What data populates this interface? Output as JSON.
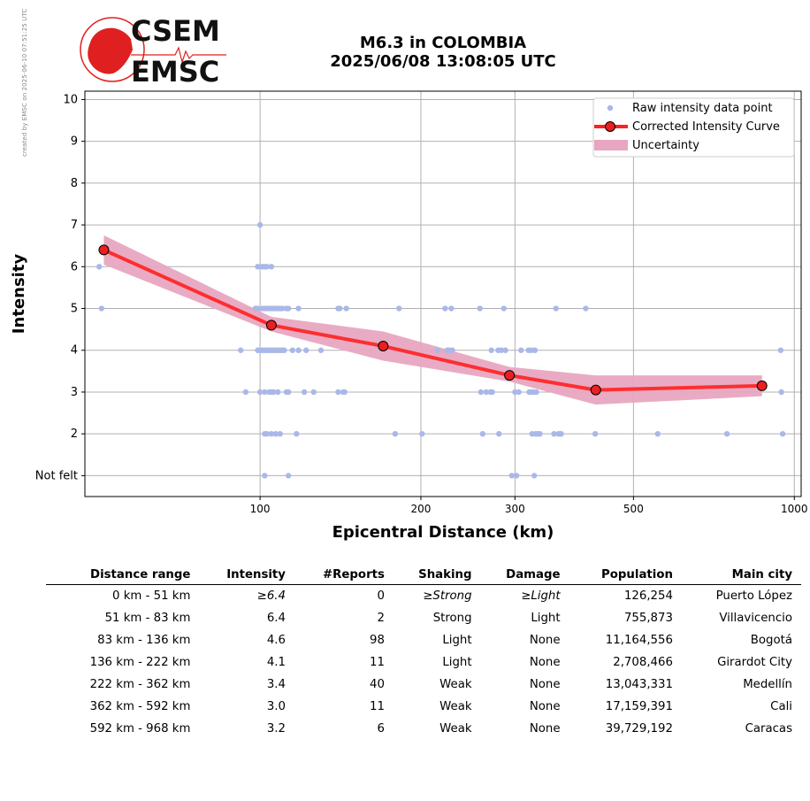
{
  "side_note": "created by EMSC on 2025-06-10 07:51:25 UTC",
  "logo": {
    "line1": "CSEM",
    "line2": "EMSC"
  },
  "header": {
    "title_line1": "M6.3 in COLOMBIA",
    "title_line2": "2025/06/08 13:08:05 UTC"
  },
  "chart_data": {
    "type": "scatter",
    "xlabel": "Epicentral Distance (km)",
    "ylabel": "Intensity",
    "x_scale": "log",
    "xlim": [
      47,
      1030
    ],
    "ylim": [
      0.5,
      10.2
    ],
    "x_ticks": [
      {
        "value": 100,
        "label": "100"
      },
      {
        "value": 200,
        "label": "200"
      },
      {
        "value": 300,
        "label": "300"
      },
      {
        "value": 500,
        "label": "500"
      },
      {
        "value": 1000,
        "label": "1000"
      }
    ],
    "y_ticks": [
      {
        "value": 1,
        "label": "Not felt"
      },
      {
        "value": 2,
        "label": "2"
      },
      {
        "value": 3,
        "label": "3"
      },
      {
        "value": 4,
        "label": "4"
      },
      {
        "value": 5,
        "label": "5"
      },
      {
        "value": 6,
        "label": "6"
      },
      {
        "value": 7,
        "label": "7"
      },
      {
        "value": 8,
        "label": "8"
      },
      {
        "value": 9,
        "label": "9"
      },
      {
        "value": 10,
        "label": "10"
      }
    ],
    "grid": true,
    "legend_position": "top-right",
    "legend": [
      {
        "key": "raw",
        "label": "Raw intensity data point"
      },
      {
        "key": "curve",
        "label": "Corrected Intensity Curve"
      },
      {
        "key": "band",
        "label": "Uncertainty"
      }
    ],
    "colors": {
      "raw": "#aab8e8",
      "curve": "#ff2020",
      "marker": "#e82020",
      "band": "#e8a6c0"
    },
    "raw_points": [
      [
        50,
        6
      ],
      [
        50.5,
        5
      ],
      [
        92,
        4
      ],
      [
        94,
        3
      ],
      [
        98,
        5
      ],
      [
        99,
        5
      ],
      [
        99,
        6
      ],
      [
        99,
        4
      ],
      [
        100,
        7
      ],
      [
        100,
        4
      ],
      [
        100,
        3
      ],
      [
        101,
        5
      ],
      [
        101,
        6
      ],
      [
        101,
        4
      ],
      [
        102,
        6
      ],
      [
        102,
        5
      ],
      [
        102,
        4
      ],
      [
        102,
        3
      ],
      [
        102,
        2
      ],
      [
        102,
        1
      ],
      [
        103,
        6
      ],
      [
        103,
        5
      ],
      [
        103,
        4
      ],
      [
        103,
        2
      ],
      [
        104,
        5
      ],
      [
        104,
        4
      ],
      [
        104,
        3
      ],
      [
        105,
        6
      ],
      [
        105,
        5
      ],
      [
        105,
        4
      ],
      [
        105,
        3
      ],
      [
        105,
        2
      ],
      [
        106,
        5
      ],
      [
        106,
        4
      ],
      [
        106,
        3
      ],
      [
        107,
        5
      ],
      [
        107,
        4
      ],
      [
        107,
        2
      ],
      [
        108,
        5
      ],
      [
        108,
        4
      ],
      [
        108,
        3
      ],
      [
        109,
        5
      ],
      [
        109,
        4
      ],
      [
        109,
        2
      ],
      [
        110,
        5
      ],
      [
        110,
        4
      ],
      [
        111,
        4
      ],
      [
        112,
        5
      ],
      [
        112,
        3
      ],
      [
        113,
        5
      ],
      [
        113,
        3
      ],
      [
        113,
        1
      ],
      [
        115,
        4
      ],
      [
        117,
        2
      ],
      [
        118,
        4
      ],
      [
        118,
        5
      ],
      [
        121,
        3
      ],
      [
        122,
        4
      ],
      [
        126,
        3
      ],
      [
        130,
        4
      ],
      [
        140,
        5
      ],
      [
        140,
        3
      ],
      [
        141,
        5
      ],
      [
        143,
        3
      ],
      [
        144,
        3
      ],
      [
        145,
        5
      ],
      [
        179,
        2
      ],
      [
        182,
        5
      ],
      [
        201,
        2
      ],
      [
        215,
        4
      ],
      [
        222,
        5
      ],
      [
        224,
        4
      ],
      [
        226,
        4
      ],
      [
        228,
        5
      ],
      [
        229,
        4
      ],
      [
        258,
        5
      ],
      [
        259,
        3
      ],
      [
        261,
        2
      ],
      [
        265,
        3
      ],
      [
        270,
        3
      ],
      [
        271,
        4
      ],
      [
        272,
        3
      ],
      [
        279,
        4
      ],
      [
        280,
        2
      ],
      [
        283,
        4
      ],
      [
        286,
        5
      ],
      [
        288,
        4
      ],
      [
        296,
        1
      ],
      [
        300,
        3
      ],
      [
        302,
        1
      ],
      [
        305,
        3
      ],
      [
        308,
        4
      ],
      [
        318,
        4
      ],
      [
        319,
        3
      ],
      [
        321,
        3
      ],
      [
        322,
        4
      ],
      [
        323,
        2
      ],
      [
        324,
        3
      ],
      [
        325,
        3
      ],
      [
        326,
        1
      ],
      [
        327,
        4
      ],
      [
        328,
        2
      ],
      [
        329,
        3
      ],
      [
        331,
        2
      ],
      [
        334,
        2
      ],
      [
        355,
        2
      ],
      [
        358,
        5
      ],
      [
        362,
        2
      ],
      [
        365,
        2
      ],
      [
        366,
        2
      ],
      [
        407,
        5
      ],
      [
        424,
        2
      ],
      [
        555,
        2
      ],
      [
        748,
        2
      ],
      [
        943,
        4
      ],
      [
        946,
        3
      ],
      [
        951,
        2
      ]
    ],
    "curve": [
      {
        "x": 51,
        "y": 6.4
      },
      {
        "x": 105,
        "y": 4.6
      },
      {
        "x": 170,
        "y": 4.1
      },
      {
        "x": 293,
        "y": 3.4
      },
      {
        "x": 425,
        "y": 3.05
      },
      {
        "x": 870,
        "y": 3.15
      }
    ],
    "band": [
      {
        "x": 51,
        "lo": 6.05,
        "hi": 6.75
      },
      {
        "x": 105,
        "lo": 4.45,
        "hi": 4.8
      },
      {
        "x": 170,
        "lo": 3.75,
        "hi": 4.45
      },
      {
        "x": 293,
        "lo": 3.25,
        "hi": 3.6
      },
      {
        "x": 425,
        "lo": 2.7,
        "hi": 3.4
      },
      {
        "x": 870,
        "lo": 2.9,
        "hi": 3.4
      }
    ]
  },
  "table": {
    "headers": [
      "Distance range",
      "Intensity",
      "#Reports",
      "Shaking",
      "Damage",
      "Population",
      "Main city"
    ],
    "rows": [
      {
        "range": "0 km -   51 km",
        "intensity": "≥6.4",
        "reports": "0",
        "shaking": "≥Strong",
        "damage": "≥Light",
        "population": "126,254",
        "city": "Puerto López"
      },
      {
        "range": "51 km -   83 km",
        "intensity": "6.4",
        "reports": "2",
        "shaking": "Strong",
        "damage": "Light",
        "population": "755,873",
        "city": "Villavicencio"
      },
      {
        "range": "83 km -  136 km",
        "intensity": "4.6",
        "reports": "98",
        "shaking": "Light",
        "damage": "None",
        "population": "11,164,556",
        "city": "Bogotá"
      },
      {
        "range": "136 km -  222 km",
        "intensity": "4.1",
        "reports": "11",
        "shaking": "Light",
        "damage": "None",
        "population": "2,708,466",
        "city": "Girardot City"
      },
      {
        "range": "222 km -  362 km",
        "intensity": "3.4",
        "reports": "40",
        "shaking": "Weak",
        "damage": "None",
        "population": "13,043,331",
        "city": "Medellín"
      },
      {
        "range": "362 km -  592 km",
        "intensity": "3.0",
        "reports": "11",
        "shaking": "Weak",
        "damage": "None",
        "population": "17,159,391",
        "city": "Cali"
      },
      {
        "range": "592 km -  968 km",
        "intensity": "3.2",
        "reports": "6",
        "shaking": "Weak",
        "damage": "None",
        "population": "39,729,192",
        "city": "Caracas"
      }
    ]
  }
}
